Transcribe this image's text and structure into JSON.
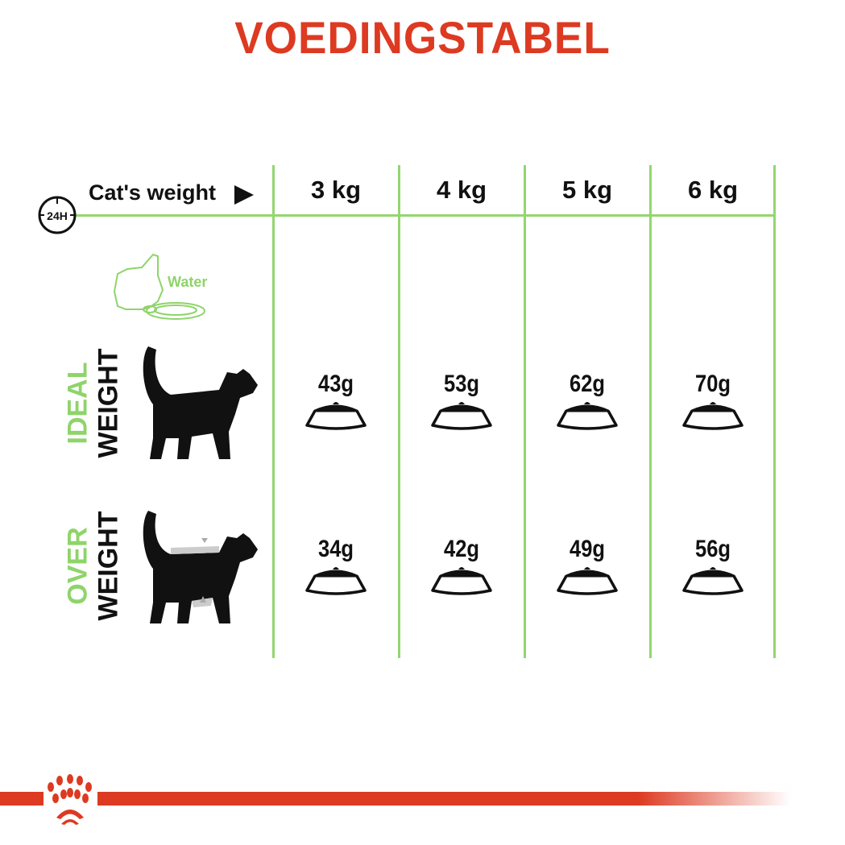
{
  "title": "VOEDINGSTABEL",
  "header": {
    "clock_label": "24H",
    "weight_label": "Cat's weight",
    "columns": [
      "3 kg",
      "4 kg",
      "5 kg",
      "6 kg"
    ]
  },
  "water_label": "Water",
  "rows": [
    {
      "label_top": "IDEAL",
      "label_bottom": "WEIGHT",
      "amounts": [
        "43g",
        "53g",
        "62g",
        "70g"
      ]
    },
    {
      "label_top": "OVER",
      "label_bottom": "WEIGHT",
      "amounts": [
        "34g",
        "42g",
        "49g",
        "56g"
      ]
    }
  ],
  "colors": {
    "title": "#dd3a22",
    "grid": "#93d66f",
    "accent_green": "#8ed46a",
    "brand_red": "#dd3a22"
  },
  "icons": [
    "clock-24h-icon",
    "arrow-right-icon",
    "water-bowl-icon",
    "cat-icon",
    "food-bowl-icon",
    "royal-canin-crown-logo"
  ]
}
